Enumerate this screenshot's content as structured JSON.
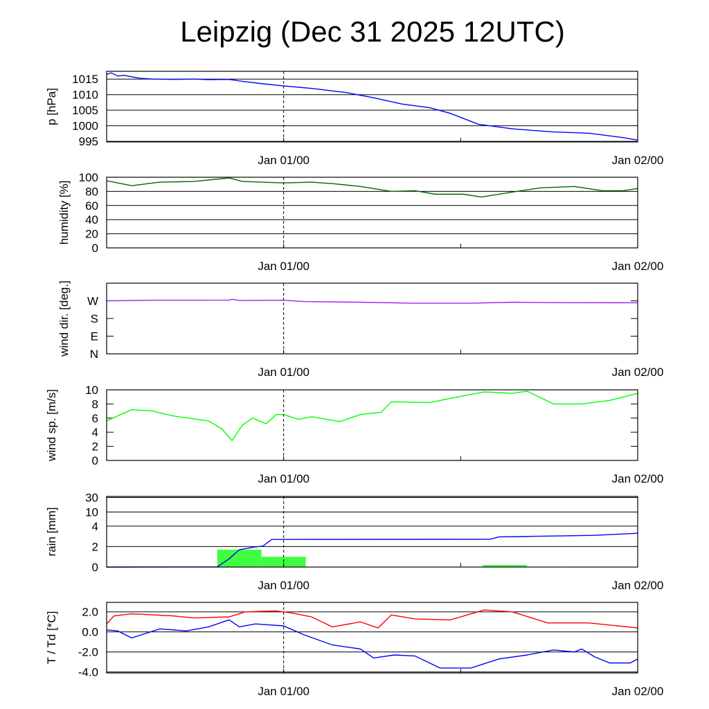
{
  "chart_data": {
    "title": "Leipzig (Dec 31 2025 12UTC)",
    "type": "line",
    "x_unit": "hours since Dec 31 12UTC",
    "xlim": [
      0,
      36
    ],
    "x_ticks": [
      {
        "h": 12,
        "label": "Jan 01/00"
      },
      {
        "h": 24,
        "label": ""
      },
      {
        "h": 36,
        "label": "Jan 02/00"
      }
    ],
    "marker_line_h": 12,
    "panels": [
      {
        "id": "pressure",
        "ylabel": "p [hPa]",
        "ylim": [
          994.8,
          1017.5
        ],
        "yticks": [
          {
            "v": 1015,
            "label": "1015"
          },
          {
            "v": 1010,
            "label": "1010"
          },
          {
            "v": 1005,
            "label": "1005"
          },
          {
            "v": 1000,
            "label": "1000"
          },
          {
            "v": 995,
            "label": "995"
          }
        ],
        "grid": true,
        "series": [
          {
            "name": "pressure",
            "color": "#0000ff",
            "type": "line",
            "points": [
              [
                0,
                1016.5
              ],
              [
                0.3,
                1017
              ],
              [
                0.75,
                1016
              ],
              [
                1.2,
                1016.2
              ],
              [
                2.2,
                1015.3
              ],
              [
                3.1,
                1015
              ],
              [
                4.5,
                1014.9
              ],
              [
                5.9,
                1015
              ],
              [
                6.9,
                1014.8
              ],
              [
                8.3,
                1014.9
              ],
              [
                9.2,
                1014.3
              ],
              [
                10.6,
                1013.5
              ],
              [
                12,
                1012.8
              ],
              [
                13.9,
                1012
              ],
              [
                16.2,
                1010.7
              ],
              [
                18.1,
                1009
              ],
              [
                20,
                1007
              ],
              [
                21.9,
                1005.8
              ],
              [
                23.3,
                1004
              ],
              [
                25.2,
                1000.5
              ],
              [
                27.5,
                999
              ],
              [
                30.3,
                998
              ],
              [
                32.7,
                997.6
              ],
              [
                35,
                996.2
              ],
              [
                36,
                995.4
              ]
            ]
          }
        ]
      },
      {
        "id": "humidity",
        "ylabel": "humidity [%]",
        "ylim": [
          0,
          100
        ],
        "yticks": [
          {
            "v": 100,
            "label": "100"
          },
          {
            "v": 80,
            "label": "80"
          },
          {
            "v": 60,
            "label": "60"
          },
          {
            "v": 40,
            "label": "40"
          },
          {
            "v": 20,
            "label": "20"
          },
          {
            "v": 0,
            "label": "0"
          }
        ],
        "grid": true,
        "series": [
          {
            "name": "humidity",
            "color": "#006400",
            "type": "line",
            "points": [
              [
                0,
                95
              ],
              [
                0.75,
                92
              ],
              [
                1.7,
                88
              ],
              [
                3.6,
                93
              ],
              [
                5.9,
                94
              ],
              [
                8.3,
                99
              ],
              [
                9.2,
                94
              ],
              [
                12,
                92
              ],
              [
                13.9,
                93
              ],
              [
                15.3,
                91
              ],
              [
                17.2,
                87
              ],
              [
                19.3,
                80
              ],
              [
                20.9,
                81
              ],
              [
                22.3,
                76
              ],
              [
                24.2,
                76
              ],
              [
                25.4,
                72
              ],
              [
                27.5,
                79
              ],
              [
                29.4,
                85
              ],
              [
                31.7,
                87
              ],
              [
                33.6,
                81
              ],
              [
                35,
                81
              ],
              [
                36,
                84
              ]
            ]
          }
        ]
      },
      {
        "id": "wind_direction",
        "ylabel": "wind dir. [deg.]",
        "ylim": [
          0,
          360
        ],
        "yticks": [
          {
            "v": 270,
            "label": "W"
          },
          {
            "v": 180,
            "label": "S"
          },
          {
            "v": 90,
            "label": "E"
          },
          {
            "v": 0,
            "label": "N"
          }
        ],
        "grid": false,
        "series": [
          {
            "name": "wind direction",
            "color": "#a020f0",
            "type": "line",
            "points": [
              [
                0,
                270
              ],
              [
                3.1,
                273
              ],
              [
                5.9,
                273
              ],
              [
                8.3,
                274
              ],
              [
                8.5,
                278
              ],
              [
                9.0,
                272
              ],
              [
                12,
                273
              ],
              [
                13.4,
                266
              ],
              [
                17.2,
                263
              ],
              [
                20.9,
                258
              ],
              [
                24.7,
                258
              ],
              [
                27.5,
                263
              ],
              [
                30.3,
                261
              ],
              [
                36,
                260
              ]
            ]
          }
        ]
      },
      {
        "id": "wind_speed",
        "ylabel": "wind sp. [m/s]",
        "ylim": [
          0,
          10
        ],
        "yticks": [
          {
            "v": 10,
            "label": "10"
          },
          {
            "v": 8,
            "label": "8"
          },
          {
            "v": 6,
            "label": "6"
          },
          {
            "v": 4,
            "label": "4"
          },
          {
            "v": 2,
            "label": "2"
          },
          {
            "v": 0,
            "label": "0"
          }
        ],
        "grid": false,
        "series": [
          {
            "name": "wind speed",
            "color": "#00ff00",
            "type": "line",
            "points": [
              [
                0,
                5.6
              ],
              [
                0.75,
                6.3
              ],
              [
                1.7,
                7.2
              ],
              [
                3.1,
                7.0
              ],
              [
                4.5,
                6.3
              ],
              [
                6.9,
                5.6
              ],
              [
                7.8,
                4.5
              ],
              [
                8.5,
                2.8
              ],
              [
                9.2,
                5
              ],
              [
                9.9,
                6
              ],
              [
                10.8,
                5.2
              ],
              [
                11.5,
                6.5
              ],
              [
                12,
                6.5
              ],
              [
                13,
                5.8
              ],
              [
                13.9,
                6.2
              ],
              [
                15.8,
                5.5
              ],
              [
                17.2,
                6.5
              ],
              [
                18.6,
                6.8
              ],
              [
                19.3,
                8.3
              ],
              [
                21.9,
                8.2
              ],
              [
                23.8,
                9
              ],
              [
                25.6,
                9.7
              ],
              [
                27.5,
                9.5
              ],
              [
                28.5,
                9.8
              ],
              [
                30.3,
                8
              ],
              [
                32.2,
                8
              ],
              [
                34.1,
                8.5
              ],
              [
                36,
                9.5
              ]
            ]
          }
        ]
      },
      {
        "id": "rain",
        "ylabel": "rain [mm]",
        "ylim": [
          0,
          30
        ],
        "scale": "nonlinear",
        "yticks": [
          {
            "v": 30,
            "label": "30"
          },
          {
            "v": 10,
            "label": "10"
          },
          {
            "v": 4,
            "label": "4"
          },
          {
            "v": 2,
            "label": "2"
          },
          {
            "v": 0,
            "label": "0"
          }
        ],
        "grid": true,
        "series": [
          {
            "name": "3h precipitation",
            "color": "#40ff40",
            "type": "bar",
            "bars": [
              [
                7.5,
                10.5,
                1.7
              ],
              [
                10.5,
                13.5,
                1.0
              ],
              [
                25.5,
                28.5,
                0.2
              ],
              [
                31.5,
                36,
                0.03
              ]
            ]
          },
          {
            "name": "accumulated precipitation",
            "color": "#0000ff",
            "type": "line",
            "points": [
              [
                0,
                0
              ],
              [
                7.5,
                0.02
              ],
              [
                8.3,
                0.8
              ],
              [
                9.0,
                1.7
              ],
              [
                10,
                1.95
              ],
              [
                10.6,
                2.05
              ],
              [
                11.2,
                2.7
              ],
              [
                12,
                2.7
              ],
              [
                26,
                2.72
              ],
              [
                26.6,
                2.95
              ],
              [
                29,
                3.0
              ],
              [
                31,
                3.05
              ],
              [
                33,
                3.1
              ],
              [
                36,
                3.3
              ]
            ]
          }
        ]
      },
      {
        "id": "temperature",
        "ylabel": "T / Td [*C]",
        "ylim": [
          -4.1,
          2.95
        ],
        "yticks": [
          {
            "v": 2,
            "label": "2.0"
          },
          {
            "v": 0,
            "label": "0.0"
          },
          {
            "v": -2,
            "label": "-2.0"
          },
          {
            "v": -4,
            "label": "-4.0"
          }
        ],
        "grid": true,
        "series": [
          {
            "name": "temperature",
            "color": "#ff0000",
            "type": "line",
            "points": [
              [
                0,
                0.8
              ],
              [
                0.5,
                1.6
              ],
              [
                1.7,
                1.8
              ],
              [
                4.5,
                1.6
              ],
              [
                5.9,
                1.4
              ],
              [
                8.3,
                1.5
              ],
              [
                9.4,
                2.0
              ],
              [
                11.5,
                2.1
              ],
              [
                12.5,
                1.9
              ],
              [
                13.9,
                1.5
              ],
              [
                15.3,
                0.5
              ],
              [
                17.2,
                1.0
              ],
              [
                18.4,
                0.4
              ],
              [
                19.3,
                1.7
              ],
              [
                20.9,
                1.3
              ],
              [
                23.3,
                1.2
              ],
              [
                25.6,
                2.2
              ],
              [
                27.5,
                2.0
              ],
              [
                29.9,
                0.9
              ],
              [
                32.7,
                0.9
              ],
              [
                36,
                0.4
              ]
            ]
          },
          {
            "name": "dew point",
            "color": "#0000ff",
            "type": "line",
            "points": [
              [
                0,
                0.2
              ],
              [
                0.75,
                0.1
              ],
              [
                1.7,
                -0.6
              ],
              [
                3.6,
                0.3
              ],
              [
                5.4,
                0.1
              ],
              [
                6.9,
                0.5
              ],
              [
                8.3,
                1.2
              ],
              [
                9.0,
                0.5
              ],
              [
                10.1,
                0.8
              ],
              [
                12,
                0.6
              ],
              [
                13.4,
                -0.3
              ],
              [
                15.3,
                -1.3
              ],
              [
                17.2,
                -1.7
              ],
              [
                18.1,
                -2.6
              ],
              [
                19.5,
                -2.3
              ],
              [
                20.9,
                -2.4
              ],
              [
                22.6,
                -3.6
              ],
              [
                24.7,
                -3.6
              ],
              [
                26.6,
                -2.7
              ],
              [
                28.5,
                -2.3
              ],
              [
                30.3,
                -1.8
              ],
              [
                31.7,
                -2.0
              ],
              [
                32.2,
                -1.7
              ],
              [
                33.1,
                -2.5
              ],
              [
                34.1,
                -3.1
              ],
              [
                35.5,
                -3.1
              ],
              [
                36,
                -2.7
              ]
            ]
          }
        ]
      }
    ]
  }
}
